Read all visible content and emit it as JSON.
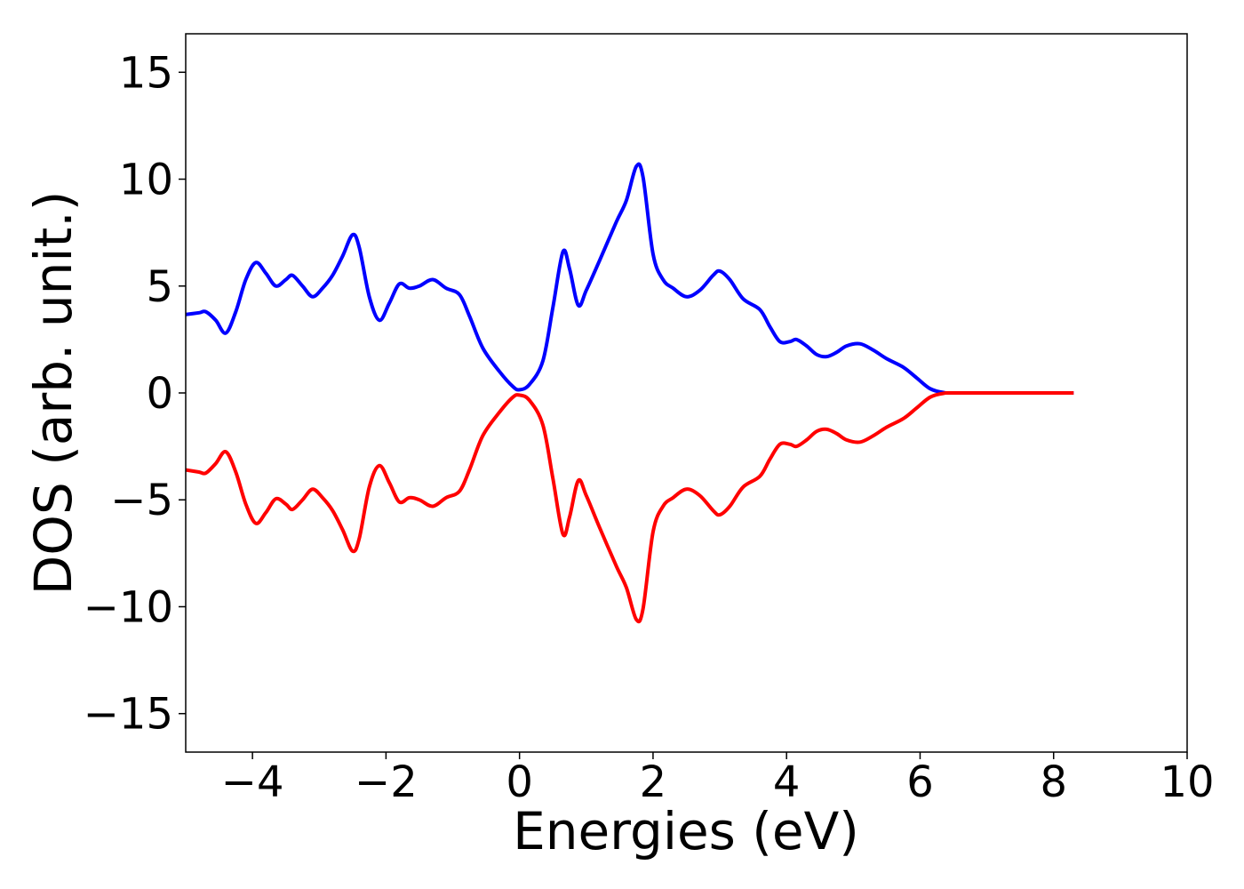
{
  "chart_data": {
    "type": "line",
    "xlabel": "Energies (eV)",
    "ylabel": "DOS (arb. unit.)",
    "x": [
      -5,
      -4.8,
      -4.7,
      -4.55,
      -4.4,
      -4.25,
      -4.1,
      -3.95,
      -3.8,
      -3.65,
      -3.5,
      -3.4,
      -3.25,
      -3.1,
      -2.95,
      -2.8,
      -2.65,
      -2.5,
      -2.4,
      -2.25,
      -2.1,
      -1.95,
      -1.8,
      -1.65,
      -1.5,
      -1.3,
      -1.1,
      -0.9,
      -0.75,
      -0.55,
      -0.3,
      -0.1,
      0,
      0.15,
      0.35,
      0.5,
      0.65,
      0.75,
      0.88,
      1.0,
      1.2,
      1.45,
      1.6,
      1.75,
      1.85,
      2.0,
      2.15,
      2.3,
      2.5,
      2.7,
      2.9,
      3.0,
      3.15,
      3.35,
      3.6,
      3.75,
      3.9,
      4.05,
      4.15,
      4.3,
      4.45,
      4.6,
      4.75,
      4.9,
      5.1,
      5.3,
      5.5,
      5.75,
      5.95,
      6.15,
      6.35,
      6.6,
      8.3
    ],
    "series": [
      {
        "color": "#0000ff",
        "values": [
          3.67,
          3.75,
          3.8,
          3.4,
          2.8,
          3.8,
          5.3,
          6.1,
          5.6,
          5.0,
          5.3,
          5.5,
          5.0,
          4.5,
          4.9,
          5.5,
          6.4,
          7.4,
          6.8,
          4.5,
          3.4,
          4.2,
          5.1,
          4.9,
          5.0,
          5.3,
          4.9,
          4.6,
          3.6,
          2.1,
          1.0,
          0.3,
          0.15,
          0.4,
          1.5,
          4.0,
          6.6,
          5.8,
          4.1,
          4.8,
          6.2,
          8.0,
          9.0,
          10.6,
          10.1,
          6.5,
          5.3,
          4.9,
          4.5,
          4.8,
          5.5,
          5.7,
          5.3,
          4.4,
          3.9,
          3.1,
          2.4,
          2.4,
          2.5,
          2.2,
          1.8,
          1.7,
          1.9,
          2.2,
          2.3,
          2.0,
          1.6,
          1.2,
          0.7,
          0.2,
          0.02,
          0,
          0
        ]
      },
      {
        "color": "#ff0000",
        "values": [
          -3.6,
          -3.7,
          -3.75,
          -3.3,
          -2.75,
          -3.7,
          -5.2,
          -6.1,
          -5.6,
          -4.95,
          -5.2,
          -5.45,
          -5.0,
          -4.5,
          -4.9,
          -5.5,
          -6.4,
          -7.4,
          -6.8,
          -4.4,
          -3.4,
          -4.2,
          -5.1,
          -4.9,
          -5.0,
          -5.3,
          -4.9,
          -4.6,
          -3.6,
          -2.0,
          -0.9,
          -0.2,
          -0.1,
          -0.35,
          -1.5,
          -4.0,
          -6.6,
          -5.8,
          -4.1,
          -4.8,
          -6.3,
          -8.1,
          -9.1,
          -10.6,
          -10.1,
          -6.5,
          -5.3,
          -4.9,
          -4.5,
          -4.8,
          -5.5,
          -5.7,
          -5.3,
          -4.4,
          -3.9,
          -3.1,
          -2.4,
          -2.4,
          -2.5,
          -2.2,
          -1.8,
          -1.7,
          -1.9,
          -2.2,
          -2.3,
          -2.0,
          -1.6,
          -1.2,
          -0.7,
          -0.2,
          -0.02,
          0,
          0
        ]
      }
    ],
    "xlim": [
      -5,
      10
    ],
    "xticks": [
      {
        "value": -4,
        "label": "−4"
      },
      {
        "value": -2,
        "label": "−2"
      },
      0,
      2,
      4,
      6,
      8,
      10
    ],
    "ylim": [
      -16.8,
      16.8
    ],
    "yticks": [
      {
        "value": -15,
        "label": "−15"
      },
      {
        "value": -10,
        "label": "−10"
      },
      {
        "value": -5,
        "label": "−5"
      },
      0,
      5,
      10,
      15
    ]
  }
}
